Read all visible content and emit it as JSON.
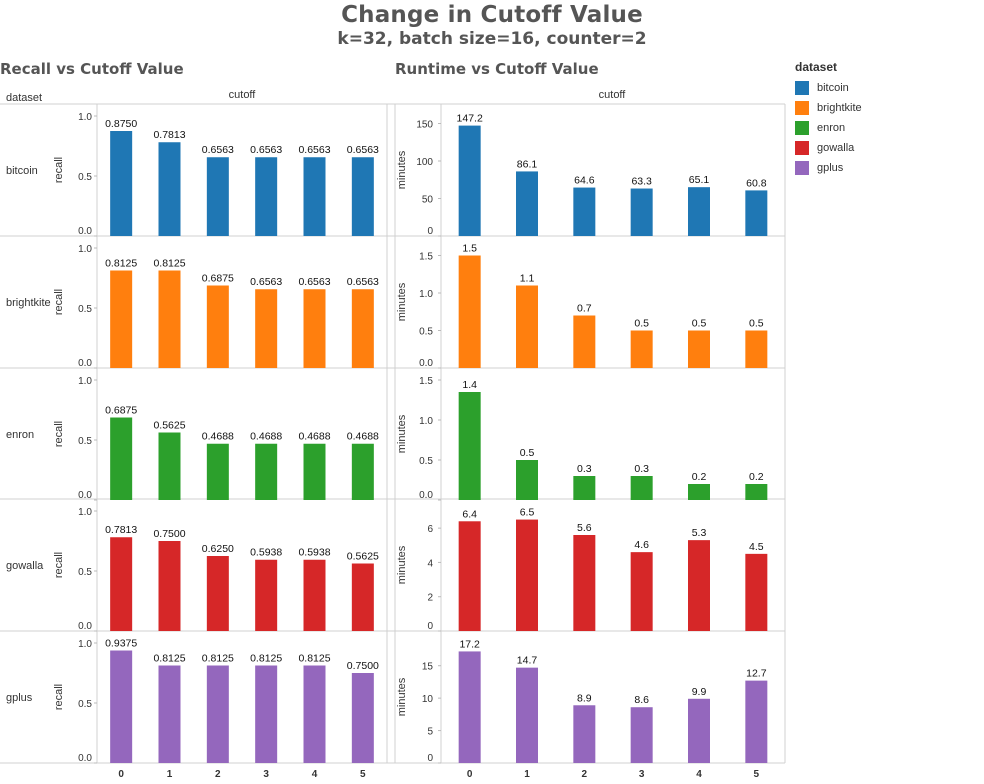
{
  "title": "Change in Cutoff Value",
  "subtitle": "k=32, batch size=16, counter=2",
  "legend": {
    "title": "dataset",
    "items": [
      {
        "label": "bitcoin",
        "color": "#1f77b4"
      },
      {
        "label": "brightkite",
        "color": "#ff7f0e"
      },
      {
        "label": "enron",
        "color": "#2ca02c"
      },
      {
        "label": "gowalla",
        "color": "#d62728"
      },
      {
        "label": "gplus",
        "color": "#9467bd"
      }
    ]
  },
  "chart_data": [
    {
      "type": "bar",
      "title": "Recall vs Cutoff Value",
      "xlabel": "cutoff",
      "ylabel": "recall",
      "row_header": "dataset",
      "categories": [
        "0",
        "1",
        "2",
        "3",
        "4",
        "5"
      ],
      "rows": [
        {
          "name": "bitcoin",
          "color": "#1f77b4",
          "values": [
            0.875,
            0.7813,
            0.6563,
            0.6563,
            0.6563,
            0.6563
          ],
          "labels": [
            "0.8750",
            "0.7813",
            "0.6563",
            "0.6563",
            "0.6563",
            "0.6563"
          ],
          "ylim": [
            0,
            1.0
          ],
          "ticks": [
            "0.0",
            "0.5",
            "1.0"
          ]
        },
        {
          "name": "brightkite",
          "color": "#ff7f0e",
          "values": [
            0.8125,
            0.8125,
            0.6875,
            0.6563,
            0.6563,
            0.6563
          ],
          "labels": [
            "0.8125",
            "0.8125",
            "0.6875",
            "0.6563",
            "0.6563",
            "0.6563"
          ],
          "ylim": [
            0,
            1.0
          ],
          "ticks": [
            "0.0",
            "0.5",
            "1.0"
          ]
        },
        {
          "name": "enron",
          "color": "#2ca02c",
          "values": [
            0.6875,
            0.5625,
            0.4688,
            0.4688,
            0.4688,
            0.4688
          ],
          "labels": [
            "0.6875",
            "0.5625",
            "0.4688",
            "0.4688",
            "0.4688",
            "0.4688"
          ],
          "ylim": [
            0,
            1.0
          ],
          "ticks": [
            "0.0",
            "0.5",
            "1.0"
          ]
        },
        {
          "name": "gowalla",
          "color": "#d62728",
          "values": [
            0.7813,
            0.75,
            0.625,
            0.5938,
            0.5938,
            0.5625
          ],
          "labels": [
            "0.7813",
            "0.7500",
            "0.6250",
            "0.5938",
            "0.5938",
            "0.5625"
          ],
          "ylim": [
            0,
            1.0
          ],
          "ticks": [
            "0.0",
            "0.5",
            "1.0"
          ]
        },
        {
          "name": "gplus",
          "color": "#9467bd",
          "values": [
            0.9375,
            0.8125,
            0.8125,
            0.8125,
            0.8125,
            0.75
          ],
          "labels": [
            "0.9375",
            "0.8125",
            "0.8125",
            "0.8125",
            "0.8125",
            "0.7500"
          ],
          "ylim": [
            0,
            1.0
          ],
          "ticks": [
            "0.0",
            "0.5",
            "1.0"
          ]
        }
      ]
    },
    {
      "type": "bar",
      "title": "Runtime vs Cutoff Value",
      "xlabel": "cutoff",
      "ylabel": "minutes",
      "categories": [
        "0",
        "1",
        "2",
        "3",
        "4",
        "5"
      ],
      "rows": [
        {
          "name": "bitcoin",
          "color": "#1f77b4",
          "values": [
            147.2,
            86.1,
            64.6,
            63.3,
            65.1,
            60.8
          ],
          "labels": [
            "147.2",
            "86.1",
            "64.6",
            "63.3",
            "65.1",
            "60.8"
          ],
          "ylim": [
            0,
            160
          ],
          "ticks": [
            "0",
            "50",
            "100",
            "150"
          ]
        },
        {
          "name": "brightkite",
          "color": "#ff7f0e",
          "values": [
            1.5,
            1.1,
            0.7,
            0.5,
            0.5,
            0.5
          ],
          "labels": [
            "1.5",
            "1.1",
            "0.7",
            "0.5",
            "0.5",
            "0.5"
          ],
          "ylim": [
            0,
            1.6
          ],
          "ticks": [
            "0.0",
            "0.5",
            "1.0",
            "1.5"
          ]
        },
        {
          "name": "enron",
          "color": "#2ca02c",
          "values": [
            1.35,
            0.5,
            0.3,
            0.3,
            0.2,
            0.2
          ],
          "labels": [
            "1.4",
            "0.5",
            "0.3",
            "0.3",
            "0.2",
            "0.2"
          ],
          "ylim": [
            0,
            1.5
          ],
          "ticks": [
            "0.0",
            "0.5",
            "1.0",
            "1.5"
          ]
        },
        {
          "name": "gowalla",
          "color": "#d62728",
          "values": [
            6.4,
            6.5,
            5.6,
            4.6,
            5.3,
            4.5
          ],
          "labels": [
            "6.4",
            "6.5",
            "5.6",
            "4.6",
            "5.3",
            "4.5"
          ],
          "ylim": [
            0,
            7
          ],
          "ticks": [
            "0",
            "2",
            "4",
            "6"
          ]
        },
        {
          "name": "gplus",
          "color": "#9467bd",
          "values": [
            17.2,
            14.7,
            8.9,
            8.6,
            9.9,
            12.7
          ],
          "labels": [
            "17.2",
            "14.7",
            "8.9",
            "8.6",
            "9.9",
            "12.7"
          ],
          "ylim": [
            0,
            18.5
          ],
          "ticks": [
            "0",
            "5",
            "10",
            "15"
          ]
        }
      ]
    }
  ]
}
